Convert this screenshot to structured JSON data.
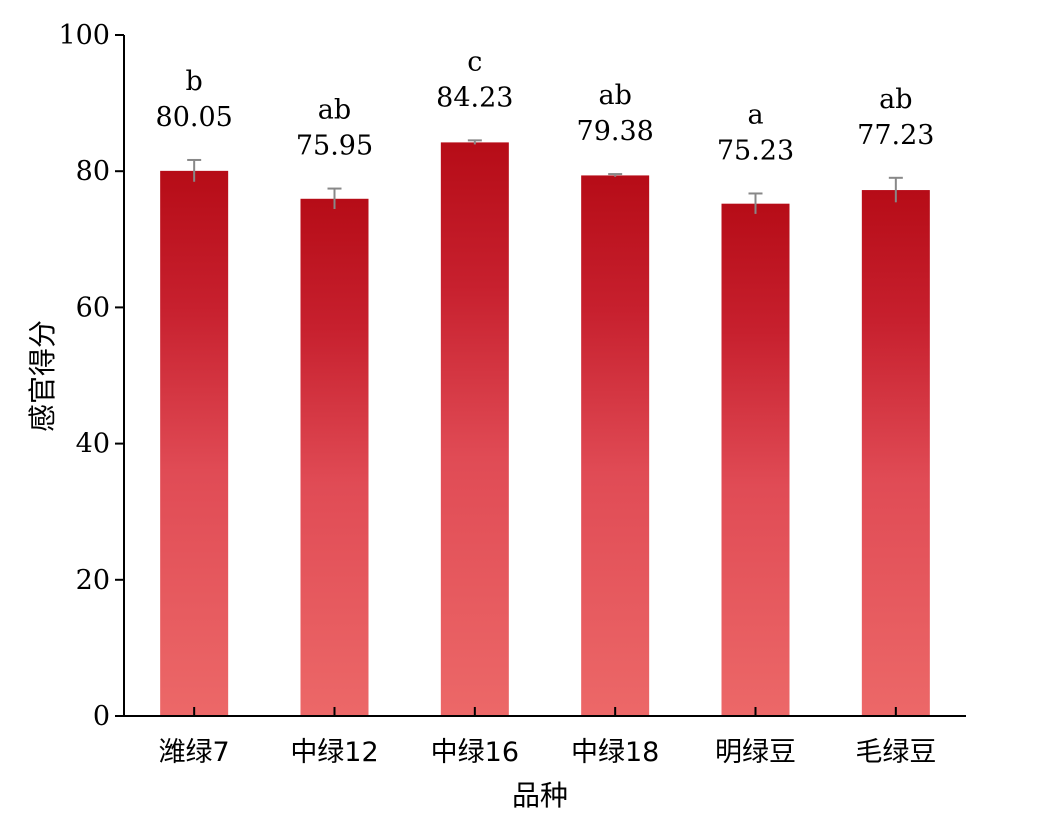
{
  "chart_data": {
    "type": "bar",
    "categories": [
      "潍绿7",
      "中绿12",
      "中绿16",
      "中绿18",
      "明绿豆",
      "毛绿豆"
    ],
    "values": [
      80.05,
      75.95,
      84.23,
      79.38,
      75.23,
      77.23
    ],
    "value_labels": [
      "80.05",
      "75.95",
      "84.23",
      "79.38",
      "75.23",
      "77.23"
    ],
    "error": [
      1.6,
      1.5,
      0.3,
      0.2,
      1.5,
      1.8
    ],
    "significance": [
      "b",
      "ab",
      "c",
      "ab",
      "a",
      "ab"
    ],
    "xlabel": "品种",
    "ylabel": "感官得分",
    "ylim": [
      0,
      100
    ],
    "yticks": [
      "0",
      "20",
      "40",
      "60",
      "80",
      "100"
    ],
    "grid": false,
    "colors": {
      "gradient_bottom": "#ec6666",
      "gradient_top": "#b80c16",
      "error_bar": "#888888",
      "axis": "#000000"
    }
  }
}
